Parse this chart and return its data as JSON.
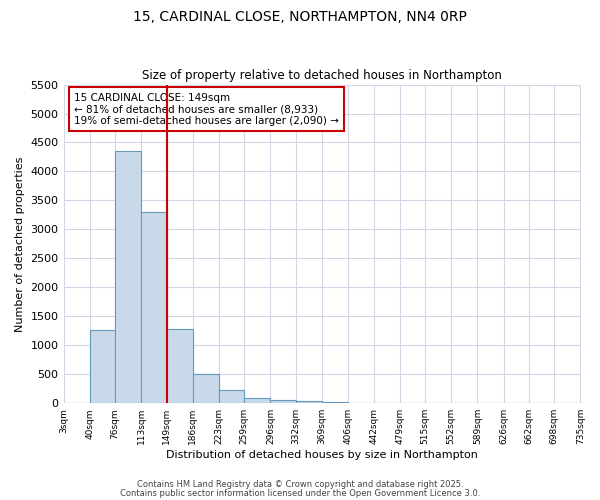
{
  "title1": "15, CARDINAL CLOSE, NORTHAMPTON, NN4 0RP",
  "title2": "Size of property relative to detached houses in Northampton",
  "xlabel": "Distribution of detached houses by size in Northampton",
  "ylabel": "Number of detached properties",
  "bar_color": "#c8daea",
  "bar_edge_color": "#6699bb",
  "background_color": "#ffffff",
  "grid_color": "#d0d8e8",
  "bins": [
    3,
    40,
    76,
    113,
    149,
    186,
    223,
    259,
    296,
    332,
    369,
    406,
    442,
    479,
    515,
    552,
    589,
    626,
    662,
    698,
    735
  ],
  "values": [
    0,
    1270,
    4350,
    3300,
    1280,
    500,
    220,
    90,
    60,
    45,
    20,
    8,
    4,
    2,
    1,
    1,
    0,
    0,
    0,
    0
  ],
  "vline_x": 149,
  "vline_color": "#cc0000",
  "annotation_text": "15 CARDINAL CLOSE: 149sqm\n← 81% of detached houses are smaller (8,933)\n19% of semi-detached houses are larger (2,090) →",
  "annotation_box_color": "#cc0000",
  "ylim": [
    0,
    5500
  ],
  "yticks": [
    0,
    500,
    1000,
    1500,
    2000,
    2500,
    3000,
    3500,
    4000,
    4500,
    5000,
    5500
  ],
  "tick_labels": [
    "3sqm",
    "40sqm",
    "76sqm",
    "113sqm",
    "149sqm",
    "186sqm",
    "223sqm",
    "259sqm",
    "296sqm",
    "332sqm",
    "369sqm",
    "406sqm",
    "442sqm",
    "479sqm",
    "515sqm",
    "552sqm",
    "589sqm",
    "626sqm",
    "662sqm",
    "698sqm",
    "735sqm"
  ],
  "footer1": "Contains HM Land Registry data © Crown copyright and database right 2025.",
  "footer2": "Contains public sector information licensed under the Open Government Licence 3.0."
}
